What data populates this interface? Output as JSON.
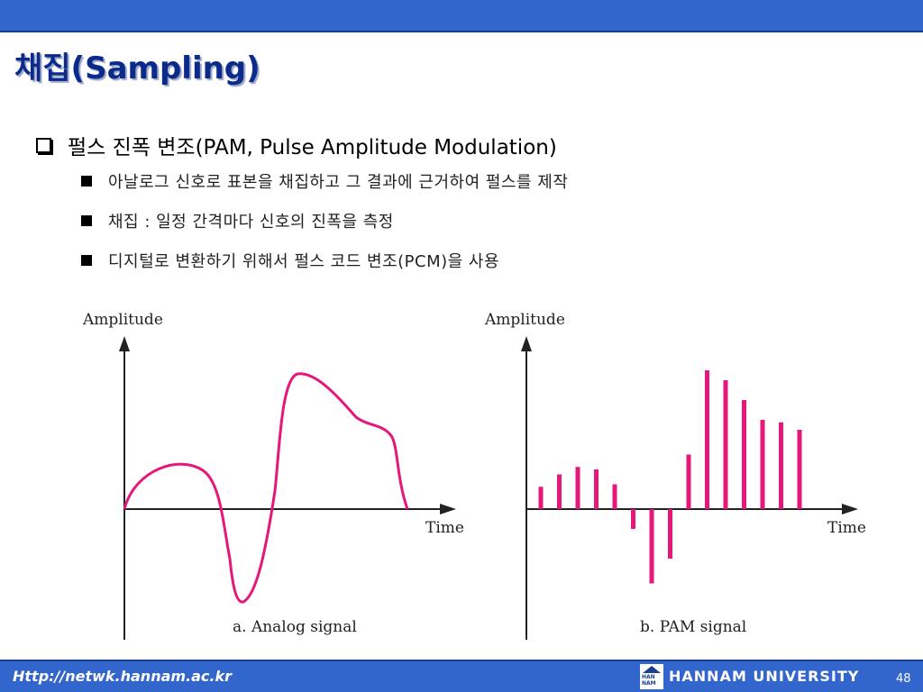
{
  "slide": {
    "title": "채집(Sampling)",
    "main_bullet": "펄스 진폭 변조(PAM, Pulse Amplitude Modulation)",
    "sub_bullets": [
      "아날로그 신호로 표본을 채집하고 그 결과에 근거하여 펄스를 제작",
      "채집 : 일정 간격마다 신호의 진폭을 측정",
      "디지털로 변환하기 위해서 펄스 코드 변조(PCM)을 사용"
    ]
  },
  "diagram": {
    "analog": {
      "ylabel": "Amplitude",
      "xlabel": "Time",
      "caption": "a. Analog signal"
    },
    "pam": {
      "ylabel": "Amplitude",
      "xlabel": "Time",
      "caption": "b. PAM signal",
      "samples": [
        0.45,
        0.7,
        0.85,
        0.8,
        0.5,
        -0.4,
        -1.5,
        -1.0,
        1.1,
        2.8,
        2.6,
        2.2,
        1.8,
        1.75,
        1.6
      ]
    },
    "colors": {
      "signal": "#e5177b",
      "axis": "#222222"
    }
  },
  "footer": {
    "url": "Http://netwk.hannam.ac.kr",
    "university": "HANNAM UNIVERSITY",
    "logo_text": "HAN NAM",
    "page": "48"
  }
}
